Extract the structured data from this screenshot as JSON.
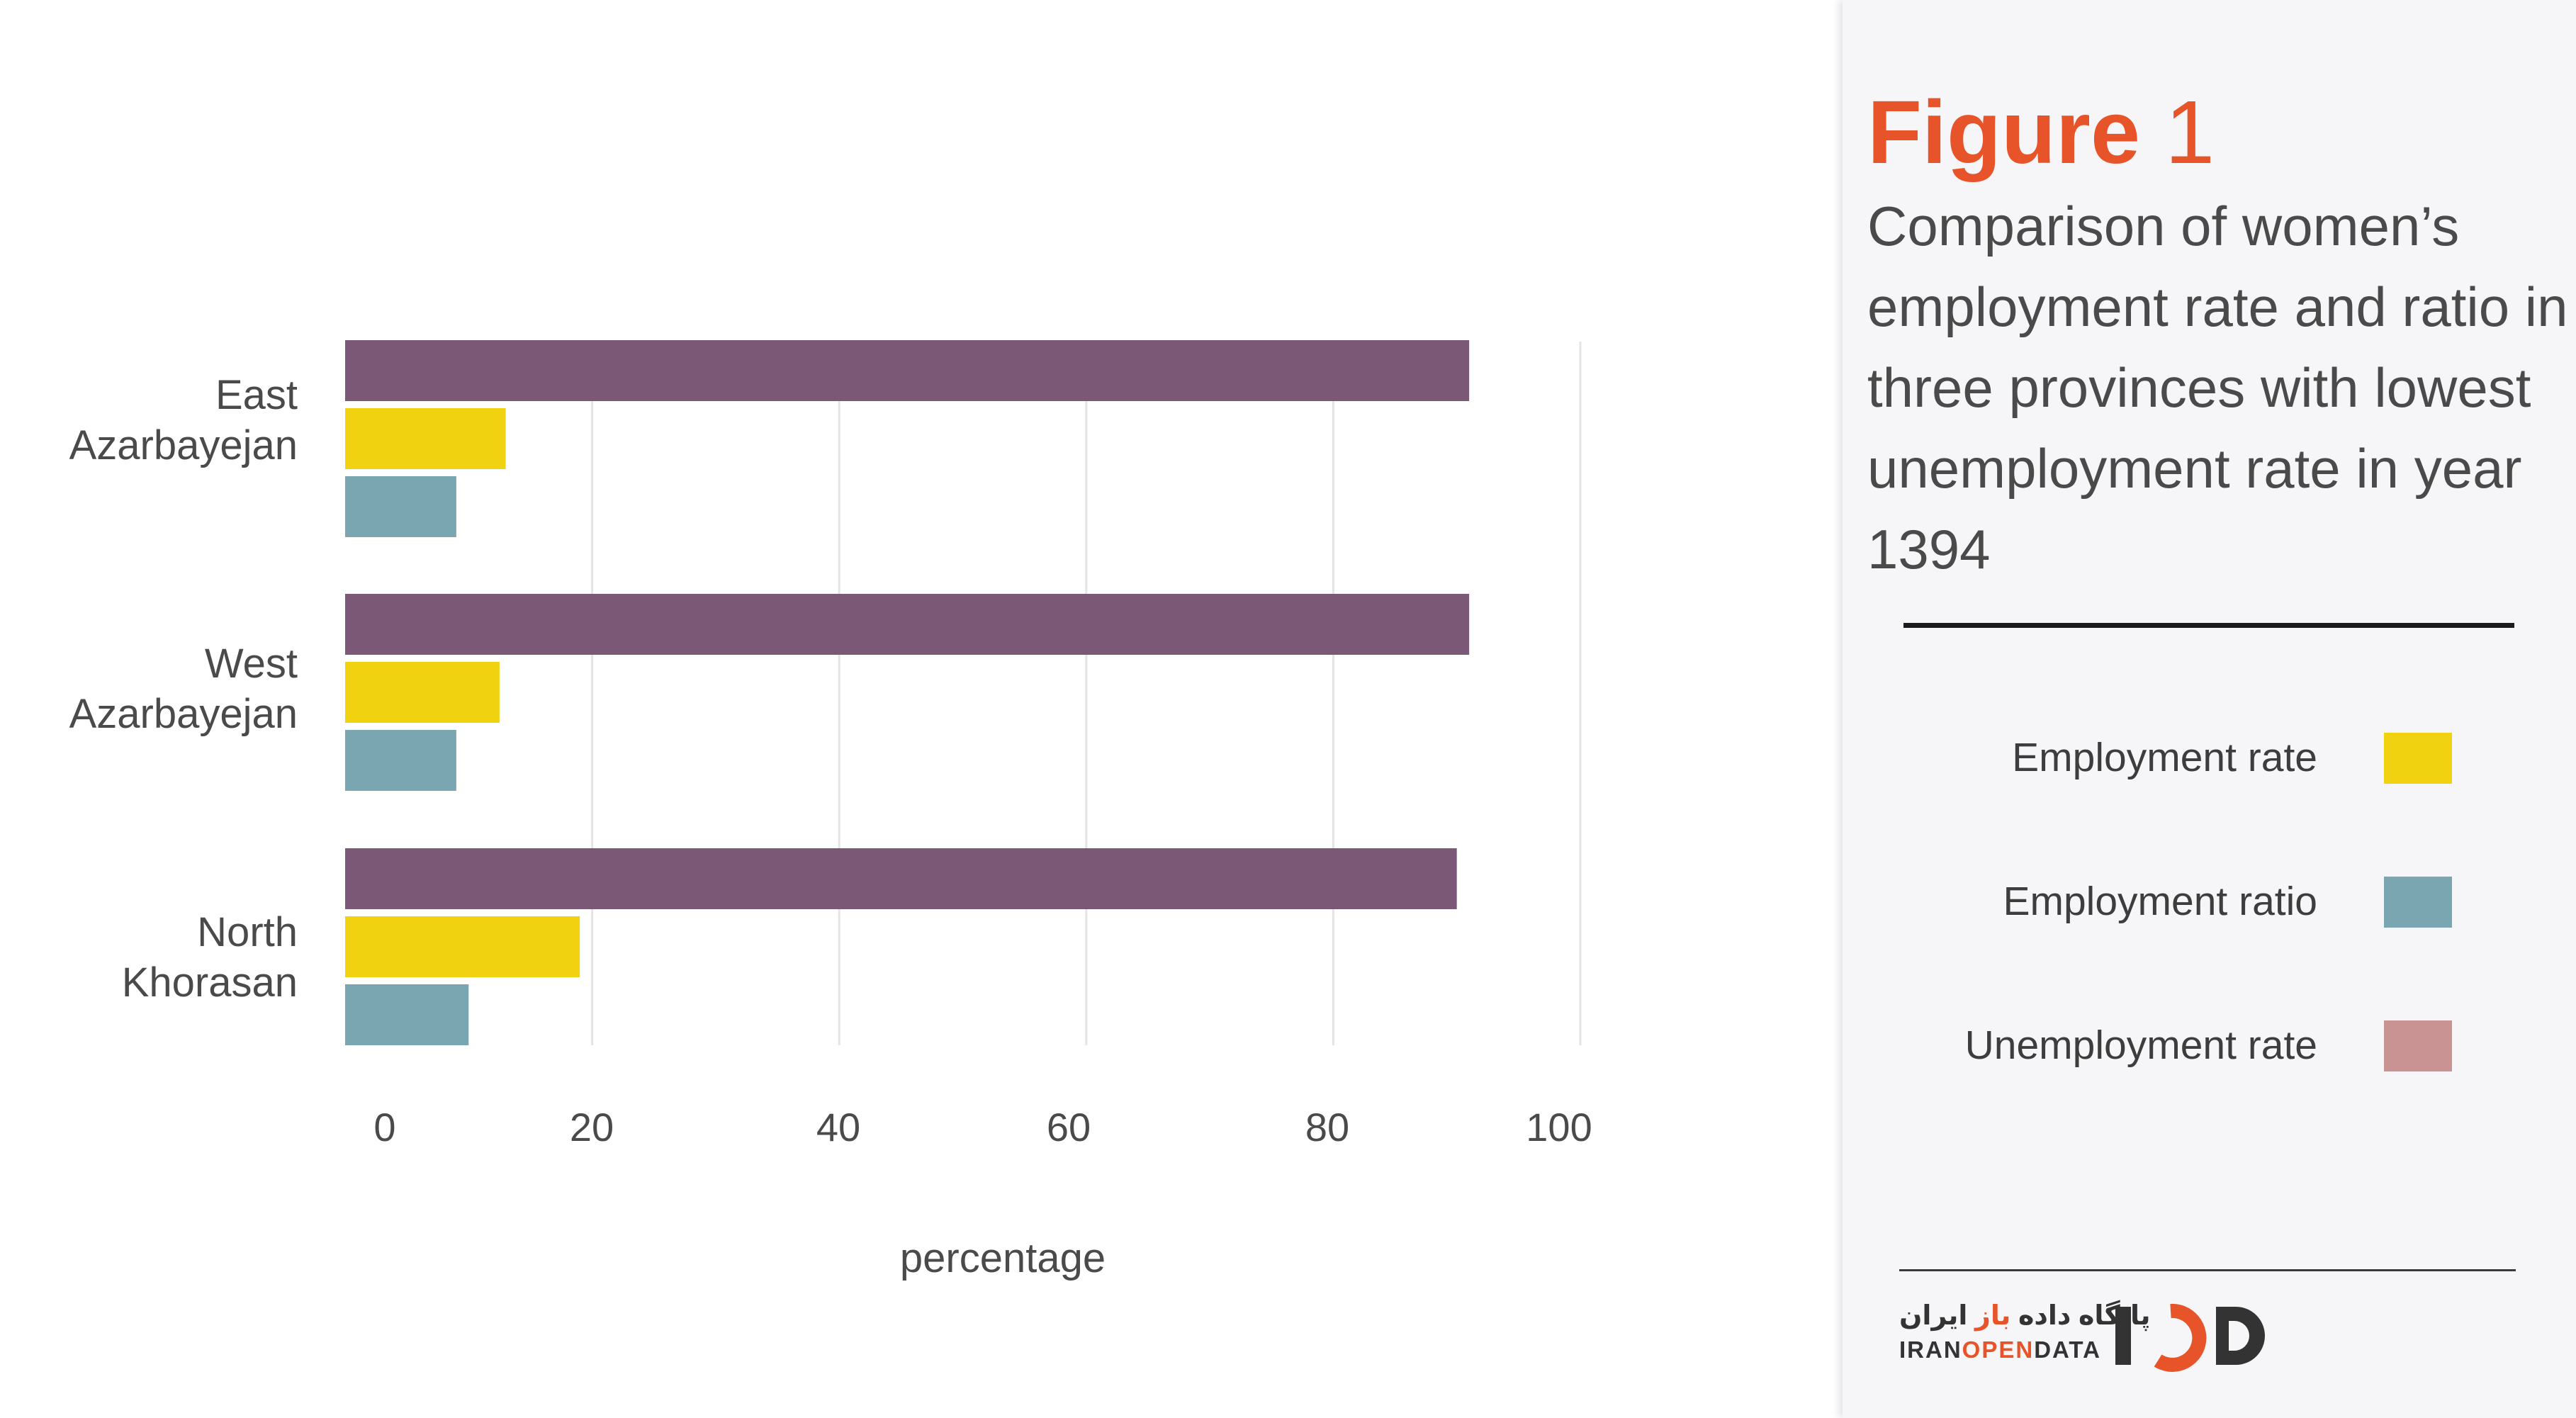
{
  "chart_data": {
    "type": "bar",
    "orientation": "horizontal",
    "categories": [
      "East Azarbayejan",
      "West Azarbayejan",
      "North Khorasan"
    ],
    "category_lines": [
      [
        "East",
        "Azarbayejan"
      ],
      [
        "West",
        "Azarbayejan"
      ],
      [
        "North",
        "Khorasan"
      ]
    ],
    "series": [
      {
        "name": "Unemployment rate",
        "values": [
          91,
          91,
          90
        ]
      },
      {
        "name": "Employment rate",
        "values": [
          13,
          12.5,
          19
        ]
      },
      {
        "name": "Employment ratio",
        "values": [
          9,
          9,
          10
        ]
      }
    ],
    "bar_colors": [
      "#7b5876",
      "#f0d210",
      "#79a6b1"
    ],
    "xlabel": "percentage",
    "xlim": [
      0,
      100
    ],
    "xticks": [
      0,
      20,
      40,
      60,
      80,
      100
    ],
    "grid": true,
    "legend_position": "right-panel"
  },
  "panel": {
    "figure_word": "Figure",
    "figure_number": "1",
    "subtitle": "Comparison of women’s employment rate and ratio in three provinces with lowest unemployment rate in year  1394",
    "legend": [
      {
        "label": "Employment rate",
        "color": "#f0d210"
      },
      {
        "label": "Employment ratio",
        "color": "#79a6b1"
      },
      {
        "label": "Unemployment rate",
        "color": "#c99394"
      }
    ],
    "logo": {
      "fa_main": "پایگاه داده",
      "fa_accent": "باز",
      "fa_end": "ایران",
      "en_part1": "IRAN",
      "en_accent": "OPEN",
      "en_part2": "DATA"
    }
  }
}
